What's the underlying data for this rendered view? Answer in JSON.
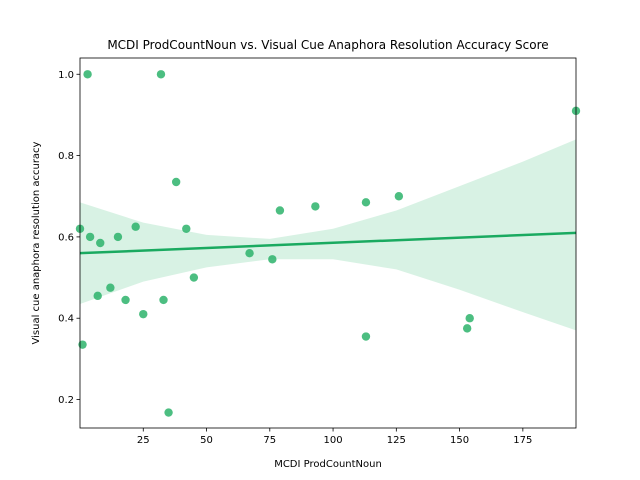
{
  "chart_data": {
    "type": "scatter",
    "title": "MCDI ProdCountNoun vs. Visual Cue Anaphora Resolution Accuracy Score",
    "xlabel": "MCDI ProdCountNoun",
    "ylabel": "Visual cue anaphora resolution accuracy",
    "xlim": [
      0,
      196
    ],
    "ylim": [
      0.13,
      1.04
    ],
    "xticks": [
      25,
      50,
      75,
      100,
      125,
      150,
      175
    ],
    "yticks": [
      0.2,
      0.4,
      0.6,
      0.8,
      1.0
    ],
    "ytick_labels": [
      "0.2",
      "0.4",
      "0.6",
      "0.8",
      "1.0"
    ],
    "grid": false,
    "point_color": "#2db36b",
    "band_color": "#c8ecd8",
    "line_color": "#1aaa60",
    "points": [
      {
        "x": 0,
        "y": 0.62
      },
      {
        "x": 1,
        "y": 0.335
      },
      {
        "x": 3,
        "y": 1.0
      },
      {
        "x": 4,
        "y": 0.6
      },
      {
        "x": 7,
        "y": 0.455
      },
      {
        "x": 8,
        "y": 0.585
      },
      {
        "x": 12,
        "y": 0.475
      },
      {
        "x": 15,
        "y": 0.6
      },
      {
        "x": 18,
        "y": 0.445
      },
      {
        "x": 22,
        "y": 0.625
      },
      {
        "x": 25,
        "y": 0.41
      },
      {
        "x": 32,
        "y": 1.0
      },
      {
        "x": 33,
        "y": 0.445
      },
      {
        "x": 35,
        "y": 0.168
      },
      {
        "x": 38,
        "y": 0.735
      },
      {
        "x": 42,
        "y": 0.62
      },
      {
        "x": 45,
        "y": 0.5
      },
      {
        "x": 67,
        "y": 0.56
      },
      {
        "x": 76,
        "y": 0.545
      },
      {
        "x": 79,
        "y": 0.665
      },
      {
        "x": 93,
        "y": 0.675
      },
      {
        "x": 113,
        "y": 0.685
      },
      {
        "x": 113,
        "y": 0.355
      },
      {
        "x": 126,
        "y": 0.7
      },
      {
        "x": 153,
        "y": 0.375
      },
      {
        "x": 154,
        "y": 0.4
      },
      {
        "x": 196,
        "y": 0.91
      }
    ],
    "regression": {
      "x": [
        0,
        196
      ],
      "y": [
        0.56,
        0.61
      ]
    },
    "ci_band": {
      "x": [
        0,
        25,
        50,
        75,
        100,
        125,
        150,
        175,
        196
      ],
      "lower": [
        0.435,
        0.49,
        0.525,
        0.545,
        0.545,
        0.52,
        0.47,
        0.415,
        0.37
      ],
      "upper": [
        0.685,
        0.635,
        0.605,
        0.595,
        0.62,
        0.665,
        0.725,
        0.785,
        0.84
      ]
    }
  }
}
